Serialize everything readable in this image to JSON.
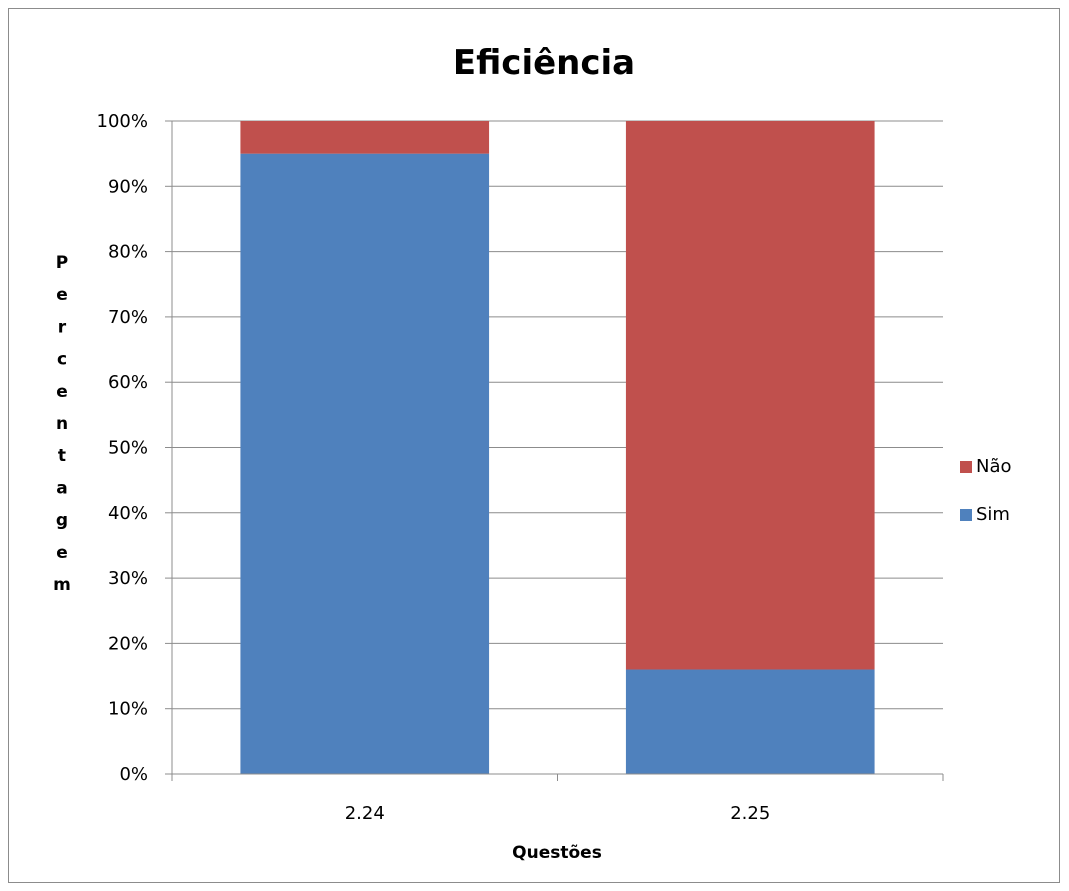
{
  "chart_data": {
    "type": "bar",
    "stacked": true,
    "title": "Eficiência",
    "xlabel": "Questões",
    "ylabel": "Percentagem",
    "categories": [
      "2.24",
      "2.25"
    ],
    "series": [
      {
        "name": "Sim",
        "values": [
          95,
          16
        ],
        "color": "#4F81BD"
      },
      {
        "name": "Não",
        "values": [
          5,
          84
        ],
        "color": "#C0504D"
      }
    ],
    "ylim": [
      0,
      100
    ],
    "yticks": [
      "0%",
      "10%",
      "20%",
      "30%",
      "40%",
      "50%",
      "60%",
      "70%",
      "80%",
      "90%",
      "100%"
    ],
    "grid": true,
    "legend_position": "right"
  }
}
